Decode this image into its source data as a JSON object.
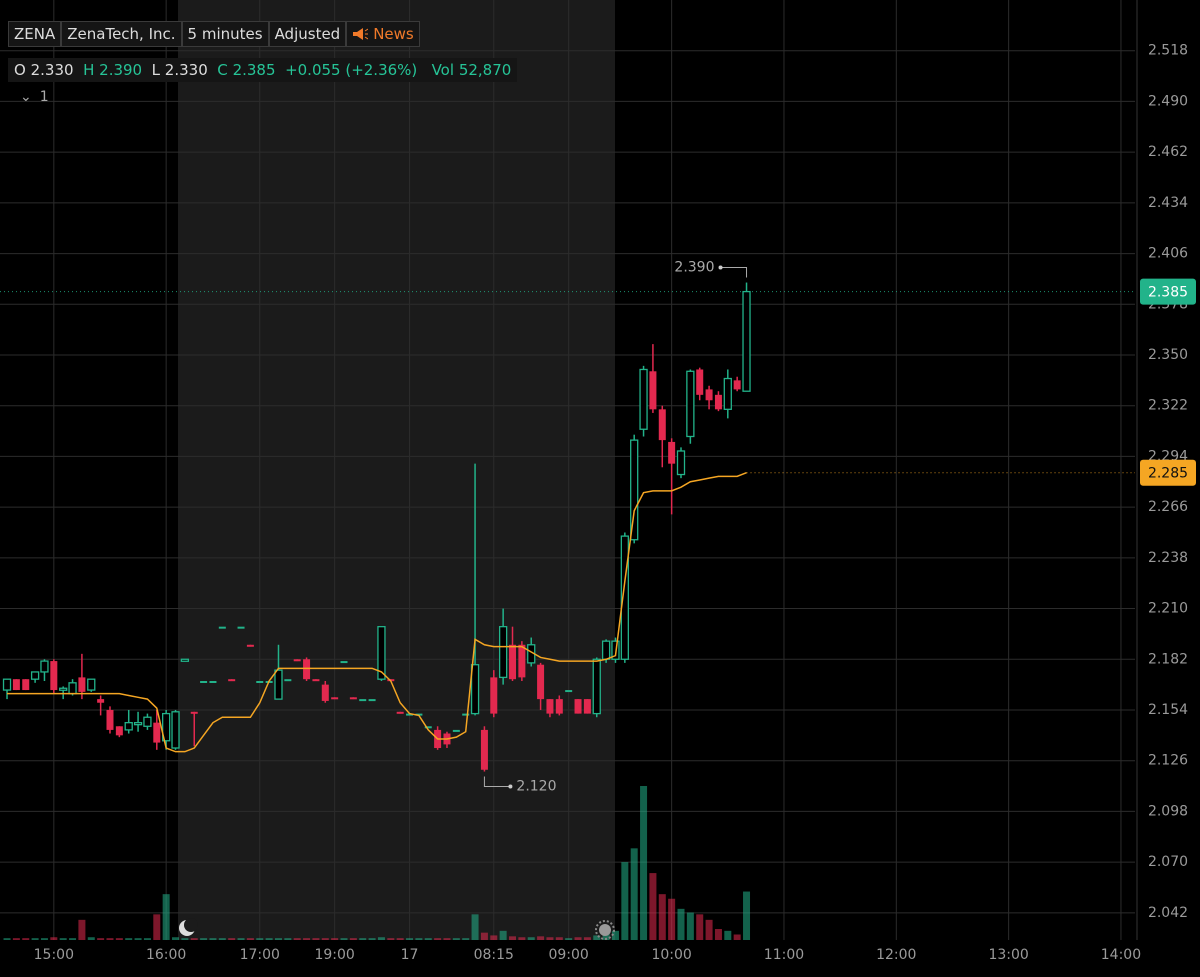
{
  "chart_data": {
    "type": "candlestick",
    "header": {
      "symbol": "ZENA",
      "name": "ZenaTech, Inc.",
      "interval": "5 minutes",
      "adjustment": "Adjusted",
      "news": "News"
    },
    "quote": {
      "open_label": "O",
      "open": "2.330",
      "high_label": "H",
      "high": "2.390",
      "low_label": "L",
      "low": "2.330",
      "close_label": "C",
      "close": "2.385",
      "change": "+0.055 (+2.36%)",
      "volume_label": "Vol",
      "volume": "52,870"
    },
    "indicator_label": "1",
    "up_color": "#22b38a",
    "down_color": "#e3294f",
    "ma_color": "#f5a623",
    "open": [
      2.165,
      2.171,
      2.171,
      2.171,
      2.175,
      2.181,
      2.165,
      2.163,
      2.172,
      2.165,
      2.16,
      2.154,
      2.145,
      2.143,
      2.146,
      2.145,
      2.147,
      2.137,
      2.133,
      2.181,
      2.153,
      2.17,
      2.17,
      2.2,
      2.171,
      2.2,
      2.19,
      2.17,
      2.17,
      2.16,
      2.171,
      2.182,
      2.182,
      2.171,
      2.168,
      2.161,
      2.181,
      2.161,
      2.16,
      2.16,
      2.171,
      2.171,
      2.153,
      2.152,
      2.152,
      2.145,
      2.143,
      2.141,
      2.143,
      2.152,
      2.152,
      2.143,
      2.172,
      2.172,
      2.19,
      2.19,
      2.18,
      2.179,
      2.16,
      2.16,
      2.165,
      2.16,
      2.16,
      2.152,
      2.182,
      2.182,
      2.182,
      2.248,
      2.309,
      2.341,
      2.32,
      2.302,
      2.284,
      2.305,
      2.342,
      2.331,
      2.328,
      2.32,
      2.336,
      2.33
    ],
    "high": [
      2.171,
      2.171,
      2.171,
      2.175,
      2.182,
      2.182,
      2.167,
      2.171,
      2.185,
      2.171,
      2.162,
      2.156,
      2.145,
      2.154,
      2.153,
      2.152,
      2.154,
      2.154,
      2.154,
      2.182,
      2.153,
      2.17,
      2.17,
      2.2,
      2.171,
      2.2,
      2.19,
      2.17,
      2.17,
      2.19,
      2.171,
      2.182,
      2.183,
      2.171,
      2.17,
      2.161,
      2.181,
      2.161,
      2.16,
      2.16,
      2.2,
      2.171,
      2.153,
      2.152,
      2.152,
      2.145,
      2.145,
      2.142,
      2.143,
      2.152,
      2.29,
      2.145,
      2.176,
      2.21,
      2.2,
      2.192,
      2.194,
      2.18,
      2.16,
      2.162,
      2.165,
      2.16,
      2.16,
      2.183,
      2.193,
      2.194,
      2.252,
      2.306,
      2.344,
      2.356,
      2.322,
      2.304,
      2.299,
      2.342,
      2.343,
      2.333,
      2.33,
      2.342,
      2.338,
      2.39
    ],
    "low": [
      2.16,
      2.165,
      2.165,
      2.169,
      2.17,
      2.163,
      2.16,
      2.162,
      2.16,
      2.164,
      2.151,
      2.141,
      2.139,
      2.141,
      2.142,
      2.143,
      2.132,
      2.132,
      2.132,
      2.181,
      2.134,
      2.17,
      2.17,
      2.2,
      2.17,
      2.2,
      2.189,
      2.17,
      2.17,
      2.16,
      2.171,
      2.181,
      2.17,
      2.17,
      2.158,
      2.16,
      2.181,
      2.16,
      2.16,
      2.16,
      2.17,
      2.17,
      2.152,
      2.152,
      2.152,
      2.145,
      2.132,
      2.133,
      2.143,
      2.152,
      2.151,
      2.12,
      2.15,
      2.168,
      2.17,
      2.17,
      2.178,
      2.154,
      2.15,
      2.151,
      2.165,
      2.152,
      2.152,
      2.15,
      2.18,
      2.18,
      2.18,
      2.246,
      2.305,
      2.318,
      2.288,
      2.262,
      2.282,
      2.301,
      2.325,
      2.32,
      2.319,
      2.315,
      2.33,
      2.33
    ],
    "close": [
      2.171,
      2.165,
      2.165,
      2.175,
      2.181,
      2.165,
      2.166,
      2.169,
      2.164,
      2.171,
      2.158,
      2.143,
      2.14,
      2.147,
      2.147,
      2.15,
      2.136,
      2.152,
      2.153,
      2.182,
      2.152,
      2.17,
      2.17,
      2.2,
      2.17,
      2.2,
      2.189,
      2.17,
      2.17,
      2.176,
      2.171,
      2.181,
      2.171,
      2.17,
      2.159,
      2.16,
      2.181,
      2.16,
      2.16,
      2.16,
      2.2,
      2.17,
      2.152,
      2.152,
      2.152,
      2.145,
      2.133,
      2.135,
      2.143,
      2.152,
      2.179,
      2.121,
      2.152,
      2.2,
      2.171,
      2.172,
      2.19,
      2.16,
      2.152,
      2.152,
      2.165,
      2.152,
      2.152,
      2.182,
      2.192,
      2.192,
      2.25,
      2.303,
      2.342,
      2.32,
      2.303,
      2.29,
      2.297,
      2.341,
      2.328,
      2.325,
      2.32,
      2.337,
      2.331,
      2.385
    ],
    "volume": [
      2000,
      2000,
      2000,
      2000,
      2000,
      3000,
      2000,
      2000,
      22000,
      3000,
      2000,
      2000,
      2000,
      2000,
      2000,
      2000,
      28000,
      50000,
      3000,
      2000,
      2000,
      2000,
      2000,
      2000,
      2000,
      2000,
      2000,
      2000,
      2000,
      2000,
      2000,
      2000,
      2000,
      2000,
      2000,
      2000,
      2000,
      2000,
      2000,
      2000,
      3000,
      2000,
      2000,
      2000,
      2000,
      2000,
      2000,
      2000,
      2000,
      2000,
      28000,
      8000,
      5000,
      10000,
      4000,
      3000,
      3000,
      4000,
      3000,
      3000,
      2000,
      3000,
      3000,
      5000,
      8000,
      10000,
      85000,
      100000,
      168000,
      73000,
      50000,
      45000,
      34000,
      30000,
      28000,
      22000,
      12000,
      10000,
      6000,
      52870
    ],
    "ma": [
      2.163,
      2.163,
      2.163,
      2.163,
      2.163,
      2.163,
      2.163,
      2.163,
      2.163,
      2.163,
      2.163,
      2.163,
      2.163,
      2.162,
      2.161,
      2.16,
      2.155,
      2.133,
      2.131,
      2.131,
      2.133,
      2.14,
      2.147,
      2.15,
      2.15,
      2.15,
      2.15,
      2.158,
      2.17,
      2.177,
      2.177,
      2.177,
      2.177,
      2.177,
      2.177,
      2.177,
      2.177,
      2.177,
      2.177,
      2.177,
      2.175,
      2.17,
      2.158,
      2.152,
      2.151,
      2.143,
      2.138,
      2.138,
      2.139,
      2.142,
      2.193,
      2.19,
      2.189,
      2.189,
      2.189,
      2.189,
      2.186,
      2.183,
      2.182,
      2.181,
      2.181,
      2.181,
      2.181,
      2.181,
      2.182,
      2.184,
      2.225,
      2.264,
      2.274,
      2.275,
      2.275,
      2.275,
      2.277,
      2.28,
      2.281,
      2.282,
      2.283,
      2.283,
      2.283,
      2.285
    ],
    "xlim": [
      -0.75,
      120.5
    ],
    "xticks": [
      {
        "value": 5,
        "label": "15:00"
      },
      {
        "value": 17,
        "label": "16:00"
      },
      {
        "value": 27,
        "label": "17:00"
      },
      {
        "value": 35,
        "label": "19:00"
      },
      {
        "value": 43,
        "label": "17"
      },
      {
        "value": 52,
        "label": "08:15"
      },
      {
        "value": 60,
        "label": "09:00"
      },
      {
        "value": 71,
        "label": "10:00"
      },
      {
        "value": 83,
        "label": "11:00"
      },
      {
        "value": 95,
        "label": "12:00"
      },
      {
        "value": 107,
        "label": "13:00"
      },
      {
        "value": 119,
        "label": "14:00"
      }
    ],
    "ylim": [
      2.027,
      2.546
    ],
    "yticks": [
      2.518,
      {
        "value": 2.49,
        "label": "2.490"
      },
      2.462,
      2.434,
      2.406,
      2.378,
      {
        "value": 2.35,
        "label": "2.350"
      },
      2.322,
      2.294,
      2.266,
      2.238,
      {
        "value": 2.21,
        "label": "2.210"
      },
      2.182,
      2.154,
      2.126,
      2.098,
      {
        "value": 2.07,
        "label": "2.070"
      },
      2.042
    ],
    "volume_lim": [
      0,
      180000
    ],
    "grid": true,
    "annotations": [
      {
        "value": 2.39,
        "label": "2.390"
      },
      {
        "value": 2.12,
        "label": "2.120"
      }
    ],
    "price_tags": [
      {
        "value": 2.385,
        "label": "2.385",
        "color": "#22b38a"
      },
      {
        "value": 2.285,
        "label": "2.285",
        "color": "#f5a623"
      }
    ]
  }
}
